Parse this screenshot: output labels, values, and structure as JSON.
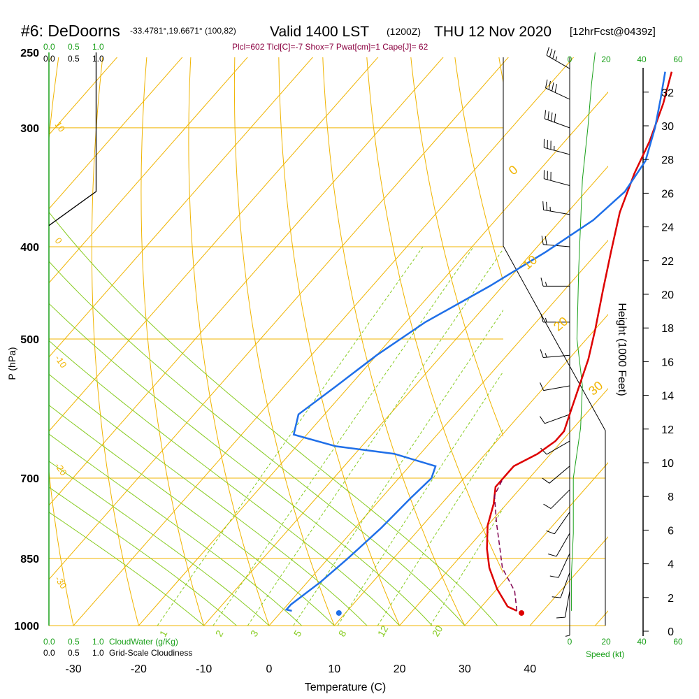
{
  "header": {
    "station": "#6: DeDoorns",
    "coords": "-33.4781°,19.6671° (100,82)",
    "valid": "Valid 1400 LST",
    "utc": "(1200Z)",
    "date": "THU 12 Nov 2020",
    "forecast": "[12hrFcst@0439z]"
  },
  "indices": "Plcl=602 Tlcl[C]=-7 Shox=7 Pwat[cm]=1 Cape[J]= 62",
  "colors": {
    "temperature": "#dd0000",
    "dewpoint": "#1f6fe8",
    "parcel": "#800050",
    "isotherm_isobar": "#f0b400",
    "dry_adiabat": "#f0b400",
    "moist_adiabat": "#88cc22",
    "mixing_ratio": "#88cc22",
    "axis_green": "#1aa01a"
  },
  "cloud_scale": {
    "cloudwater_label": "CloudWater (g/Kg)",
    "cloudiness_label": "Grid-Scale Cloudiness",
    "cloudwater_ticks": [
      "0.0",
      "0.5",
      "1.0"
    ],
    "cloudiness_ticks": [
      "0.0",
      "0.5",
      "1.0"
    ]
  },
  "wind_scale": {
    "label": "Speed (kt)",
    "ticks": [
      "0",
      "20",
      "40",
      "60"
    ]
  },
  "isotherm_labels": [
    "-10",
    "0",
    "10",
    "20",
    "30"
  ],
  "dry_adiabat_labels": [
    "10",
    "0",
    "-10",
    "-20",
    "-30"
  ],
  "moist_adiabat_labels": [
    "0",
    "10",
    "20",
    "30"
  ],
  "mixing_ratio_labels": [
    "1",
    "2",
    "3",
    "5",
    "8",
    "12",
    "20"
  ],
  "chart_data": {
    "type": "line",
    "title": "#6: DeDoorns   Valid 1400 LST THU 12 Nov 2020",
    "xlabel": "Temperature (C)",
    "ylabel": "P (hPa)",
    "y2label": "Height (1000 Feet)",
    "xlim": [
      -35,
      55
    ],
    "ylim": [
      1000,
      250
    ],
    "xticks": [
      "-30",
      "-20",
      "-10",
      "0",
      "10",
      "20",
      "30",
      "40"
    ],
    "yticks": [
      "250",
      "300",
      "400",
      "500",
      "700",
      "850",
      "1000"
    ],
    "y2ticks": [
      "0",
      "2",
      "4",
      "6",
      "8",
      "10",
      "12",
      "14",
      "16",
      "18",
      "20",
      "22",
      "24",
      "26",
      "28",
      "30",
      "32"
    ],
    "series": [
      {
        "name": "Temperature",
        "points": [
          [
            36,
            965
          ],
          [
            34,
            955
          ],
          [
            30,
            915
          ],
          [
            26,
            870
          ],
          [
            23,
            830
          ],
          [
            20,
            785
          ],
          [
            18,
            745
          ],
          [
            16,
            715
          ],
          [
            16,
            690
          ],
          [
            16,
            680
          ],
          [
            18,
            660
          ],
          [
            19,
            640
          ],
          [
            19,
            625
          ],
          [
            17,
            590
          ],
          [
            13,
            525
          ],
          [
            10,
            488
          ],
          [
            6,
            445
          ],
          [
            2,
            405
          ],
          [
            -2,
            368
          ],
          [
            -5,
            335
          ],
          [
            -7,
            310
          ],
          [
            -10,
            283
          ],
          [
            -13,
            262
          ]
        ]
      },
      {
        "name": "Dewpoint",
        "points": [
          [
            1.5,
            965
          ],
          [
            0.5,
            962
          ],
          [
            0.5,
            950
          ],
          [
            2,
            900
          ],
          [
            3,
            850
          ],
          [
            4,
            790
          ],
          [
            4.5,
            735
          ],
          [
            5,
            700
          ],
          [
            4,
            680
          ],
          [
            -4,
            660
          ],
          [
            -14,
            648
          ],
          [
            -22,
            630
          ],
          [
            -24,
            600
          ],
          [
            -22,
            560
          ],
          [
            -20,
            520
          ],
          [
            -17,
            480
          ],
          [
            -12,
            440
          ],
          [
            -8,
            405
          ],
          [
            -5,
            375
          ],
          [
            -4,
            350
          ],
          [
            -5,
            325
          ],
          [
            -8,
            300
          ],
          [
            -11,
            280
          ],
          [
            -14,
            262
          ]
        ]
      },
      {
        "name": "Parcel",
        "points": [
          [
            36,
            965
          ],
          [
            33,
            920
          ],
          [
            28,
            870
          ],
          [
            25,
            830
          ],
          [
            21,
            780
          ],
          [
            17,
            730
          ],
          [
            16,
            700
          ]
        ]
      }
    ],
    "surface_temperature": 37,
    "surface_dewpoint": 9,
    "cloudiness_profile": [
      [
        0.9,
        250
      ],
      [
        0.9,
        350
      ],
      [
        0,
        380
      ]
    ],
    "wind_speed_profile": [
      [
        1,
        965
      ],
      [
        1,
        880
      ],
      [
        2,
        800
      ],
      [
        2,
        700
      ],
      [
        6,
        620
      ],
      [
        7,
        560
      ],
      [
        4,
        500
      ],
      [
        5,
        420
      ],
      [
        7,
        340
      ],
      [
        10,
        300
      ],
      [
        12,
        270
      ],
      [
        14,
        250
      ]
    ],
    "wind_barbs": [
      {
        "p": 260,
        "dir": 300,
        "spd": 35
      },
      {
        "p": 280,
        "dir": 295,
        "spd": 40
      },
      {
        "p": 300,
        "dir": 290,
        "spd": 40
      },
      {
        "p": 320,
        "dir": 285,
        "spd": 35
      },
      {
        "p": 345,
        "dir": 285,
        "spd": 30
      },
      {
        "p": 370,
        "dir": 280,
        "spd": 25
      },
      {
        "p": 400,
        "dir": 275,
        "spd": 20
      },
      {
        "p": 440,
        "dir": 270,
        "spd": 15
      },
      {
        "p": 480,
        "dir": 270,
        "spd": 15
      },
      {
        "p": 520,
        "dir": 265,
        "spd": 15
      },
      {
        "p": 560,
        "dir": 260,
        "spd": 10
      },
      {
        "p": 600,
        "dir": 250,
        "spd": 10
      },
      {
        "p": 640,
        "dir": 240,
        "spd": 10
      },
      {
        "p": 680,
        "dir": 230,
        "spd": 10
      },
      {
        "p": 720,
        "dir": 225,
        "spd": 10
      },
      {
        "p": 760,
        "dir": 215,
        "spd": 10
      },
      {
        "p": 800,
        "dir": 210,
        "spd": 10
      },
      {
        "p": 840,
        "dir": 205,
        "spd": 10
      },
      {
        "p": 880,
        "dir": 200,
        "spd": 10
      },
      {
        "p": 920,
        "dir": 190,
        "spd": 10
      },
      {
        "p": 960,
        "dir": 180,
        "spd": 5
      }
    ]
  }
}
